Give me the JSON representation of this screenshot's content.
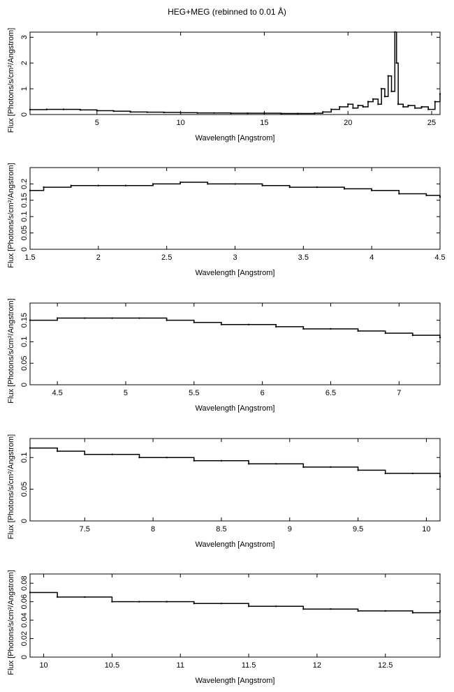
{
  "page_title": "HEG+MEG (rebinned to 0.01 Å)",
  "chart_data": [
    {
      "type": "line",
      "style": "histogram",
      "xlabel": "Wavelength [Angstrom]",
      "ylabel": "Flux [Photons/s/cm²/Angstrom]",
      "xlim": [
        1,
        25.5
      ],
      "ylim": [
        0,
        3.2
      ],
      "xticks": [
        5,
        10,
        15,
        20,
        25
      ],
      "yticks": [
        0,
        1,
        2,
        3
      ],
      "series": [
        {
          "x": [
            1,
            2,
            3,
            4,
            5,
            6,
            7,
            8,
            9,
            10,
            11,
            12,
            13,
            14,
            15,
            16,
            17,
            18,
            18.5,
            19,
            19.5,
            20,
            20.3,
            20.6,
            20.9,
            21.2,
            21.5,
            21.8,
            22.0,
            22.2,
            22.4,
            22.6,
            22.8,
            22.9,
            23.0,
            23.3,
            23.6,
            24.0,
            24.4,
            24.8,
            25.2,
            25.5
          ],
          "y": [
            0.19,
            0.2,
            0.2,
            0.18,
            0.15,
            0.13,
            0.1,
            0.09,
            0.08,
            0.07,
            0.06,
            0.06,
            0.05,
            0.05,
            0.05,
            0.04,
            0.04,
            0.05,
            0.1,
            0.2,
            0.3,
            0.4,
            0.25,
            0.35,
            0.3,
            0.5,
            0.6,
            0.4,
            1.0,
            0.7,
            1.5,
            0.9,
            3.2,
            2.0,
            0.4,
            0.3,
            0.35,
            0.25,
            0.3,
            0.2,
            0.5,
            0.8
          ]
        }
      ]
    },
    {
      "type": "line",
      "style": "histogram",
      "xlabel": "Wavelength [Angstrom]",
      "ylabel": "Flux [Photons/s/cm²/Angstrom]",
      "xlim": [
        1.5,
        4.5
      ],
      "ylim": [
        0,
        0.25
      ],
      "xticks": [
        1.5,
        2,
        2.5,
        3,
        3.5,
        4,
        4.5
      ],
      "xticklabels": [
        "1.5",
        "2",
        "2.5",
        "3",
        "3.5",
        "4",
        "4.5"
      ],
      "yticks": [
        0,
        0.05,
        0.1,
        0.15,
        0.2
      ],
      "yticklabels": [
        "0",
        "0.05",
        "0.1",
        "0.15",
        "0.2"
      ],
      "series": [
        {
          "x": [
            1.5,
            1.6,
            1.8,
            2.0,
            2.2,
            2.4,
            2.6,
            2.8,
            3.0,
            3.2,
            3.4,
            3.6,
            3.8,
            4.0,
            4.2,
            4.4,
            4.5
          ],
          "y": [
            0.18,
            0.19,
            0.195,
            0.195,
            0.195,
            0.2,
            0.205,
            0.2,
            0.2,
            0.195,
            0.19,
            0.19,
            0.185,
            0.18,
            0.17,
            0.165,
            0.16
          ]
        }
      ]
    },
    {
      "type": "line",
      "style": "histogram",
      "xlabel": "Wavelength [Angstrom]",
      "ylabel": "Flux [Photons/s/cm²/Angstrom]",
      "xlim": [
        4.3,
        7.3
      ],
      "ylim": [
        0,
        0.19
      ],
      "xticks": [
        4.5,
        5,
        5.5,
        6,
        6.5,
        7
      ],
      "xticklabels": [
        "4.5",
        "5",
        "5.5",
        "6",
        "6.5",
        "7"
      ],
      "yticks": [
        0,
        0.05,
        0.1,
        0.15
      ],
      "yticklabels": [
        "0",
        "0.05",
        "0.1",
        "0.15"
      ],
      "series": [
        {
          "x": [
            4.3,
            4.5,
            4.7,
            4.9,
            5.1,
            5.3,
            5.5,
            5.7,
            5.9,
            6.1,
            6.3,
            6.5,
            6.7,
            6.9,
            7.1,
            7.3
          ],
          "y": [
            0.15,
            0.155,
            0.155,
            0.155,
            0.155,
            0.15,
            0.145,
            0.14,
            0.14,
            0.135,
            0.13,
            0.13,
            0.125,
            0.12,
            0.115,
            0.11
          ]
        }
      ]
    },
    {
      "type": "line",
      "style": "histogram",
      "xlabel": "Wavelength [Angstrom]",
      "ylabel": "Flux [Photons/s/cm²/Angstrom]",
      "xlim": [
        7.1,
        10.1
      ],
      "ylim": [
        0,
        0.13
      ],
      "xticks": [
        7.5,
        8,
        8.5,
        9,
        9.5,
        10
      ],
      "xticklabels": [
        "7.5",
        "8",
        "8.5",
        "9",
        "9.5",
        "10"
      ],
      "yticks": [
        0,
        0.05,
        0.1
      ],
      "yticklabels": [
        "0",
        "0.05",
        "0.1"
      ],
      "series": [
        {
          "x": [
            7.1,
            7.3,
            7.5,
            7.7,
            7.9,
            8.1,
            8.3,
            8.5,
            8.7,
            8.9,
            9.1,
            9.3,
            9.5,
            9.7,
            9.9,
            10.1
          ],
          "y": [
            0.115,
            0.11,
            0.105,
            0.105,
            0.1,
            0.1,
            0.095,
            0.095,
            0.09,
            0.09,
            0.085,
            0.085,
            0.08,
            0.075,
            0.075,
            0.07
          ]
        }
      ]
    },
    {
      "type": "line",
      "style": "histogram",
      "xlabel": "Wavelength [Angstrom]",
      "ylabel": "Flux [Photons/s/cm²/Angstrom]",
      "xlim": [
        9.9,
        12.9
      ],
      "ylim": [
        0,
        0.09
      ],
      "xticks": [
        10,
        10.5,
        11,
        11.5,
        12,
        12.5
      ],
      "xticklabels": [
        "10",
        "10.5",
        "11",
        "11.5",
        "12",
        "12.5"
      ],
      "yticks": [
        0,
        0.02,
        0.04,
        0.06,
        0.08
      ],
      "yticklabels": [
        "0",
        "0.02",
        "0.04",
        "0.06",
        "0.08"
      ],
      "series": [
        {
          "x": [
            9.9,
            10.1,
            10.3,
            10.5,
            10.7,
            10.9,
            11.1,
            11.3,
            11.5,
            11.7,
            11.9,
            12.1,
            12.3,
            12.5,
            12.7,
            12.9
          ],
          "y": [
            0.07,
            0.065,
            0.065,
            0.06,
            0.06,
            0.06,
            0.058,
            0.058,
            0.055,
            0.055,
            0.052,
            0.052,
            0.05,
            0.05,
            0.048,
            0.05
          ]
        }
      ]
    }
  ]
}
